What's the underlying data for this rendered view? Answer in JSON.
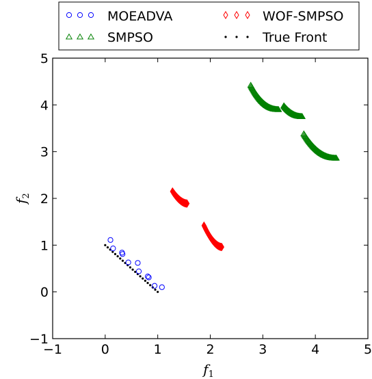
{
  "chart_data": {
    "type": "scatter",
    "xlabel": "f",
    "xlabel_sub": "1",
    "ylabel": "f",
    "ylabel_sub": "2",
    "xlim": [
      -1,
      5
    ],
    "ylim": [
      -1,
      5
    ],
    "xticks": [
      -1,
      0,
      1,
      2,
      3,
      4,
      5
    ],
    "yticks": [
      -1,
      0,
      1,
      2,
      3,
      4,
      5
    ],
    "grid": false,
    "legend_placement": "top, above plot",
    "series": [
      {
        "name": "MOEADVA",
        "marker": "circle",
        "color": "#0000ff",
        "points": [
          [
            0.1,
            1.11
          ],
          [
            0.15,
            0.93
          ],
          [
            0.32,
            0.84
          ],
          [
            0.33,
            0.81
          ],
          [
            0.44,
            0.63
          ],
          [
            0.62,
            0.62
          ],
          [
            0.64,
            0.44
          ],
          [
            0.81,
            0.33
          ],
          [
            0.83,
            0.31
          ],
          [
            0.94,
            0.13
          ],
          [
            1.08,
            0.1
          ]
        ]
      },
      {
        "name": "SMPSO",
        "marker": "triangle",
        "color": "#008000",
        "segments": [
          {
            "x": [
              2.77,
              3.3
            ],
            "a": 1.8,
            "shape": "bow"
          },
          {
            "x": [
              3.4,
              3.75
            ],
            "a": 1.8,
            "shape": "bow"
          },
          {
            "x": [
              3.78,
              4.4
            ],
            "a": 1.8,
            "shape": "bow"
          }
        ],
        "segment_y": [
          [
            4.42,
            3.9
          ],
          [
            3.98,
            3.75
          ],
          [
            3.38,
            2.86
          ]
        ]
      },
      {
        "name": "WOF-SMPSO",
        "marker": "diamond",
        "color": "#ff0000",
        "segments": [
          {
            "x": [
              1.28,
              1.56
            ],
            "y": [
              2.15,
              1.89
            ]
          },
          {
            "x": [
              1.88,
              2.22
            ],
            "y": [
              1.42,
              0.96
            ]
          }
        ]
      },
      {
        "name": "True Front",
        "marker": "dot",
        "color": "#000000",
        "line": {
          "x": [
            0.0,
            1.0
          ],
          "y": [
            1.0,
            0.0
          ],
          "count": 22
        }
      }
    ]
  }
}
